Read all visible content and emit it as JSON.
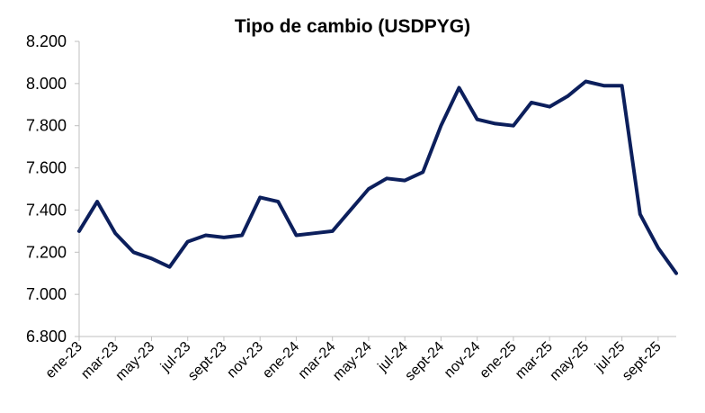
{
  "chart_data": {
    "type": "line",
    "title": "Tipo de cambio (USDPYG)",
    "xlabel": "",
    "ylabel": "",
    "ylim": [
      6800,
      8200
    ],
    "yticks": [
      6800,
      7000,
      7200,
      7400,
      7600,
      7800,
      8000,
      8200
    ],
    "ytick_labels": [
      "6.800",
      "7.000",
      "7.200",
      "7.400",
      "7.600",
      "7.800",
      "8.000",
      "8.200"
    ],
    "xtick_labels": [
      "ene-23",
      "mar-23",
      "may-23",
      "jul-23",
      "sept-23",
      "nov-23",
      "ene-24",
      "mar-24",
      "may-24",
      "jul-24",
      "sept-24",
      "nov-24",
      "ene-25",
      "mar-25",
      "may-25",
      "jul-25",
      "sept-25"
    ],
    "xlim": [
      "2023-01",
      "2025-10"
    ],
    "grid": false,
    "line_color": "#0c1f5c",
    "series": [
      {
        "x": [
          "2023-01",
          "2023-02",
          "2023-03",
          "2023-04",
          "2023-05",
          "2023-06",
          "2023-07",
          "2023-08",
          "2023-09",
          "2023-10",
          "2023-11",
          "2023-12",
          "2024-01",
          "2024-02",
          "2024-03",
          "2024-04",
          "2024-05",
          "2024-06",
          "2024-07",
          "2024-08",
          "2024-09",
          "2024-10",
          "2024-11",
          "2024-12",
          "2025-01",
          "2025-02",
          "2025-03",
          "2025-04",
          "2025-05",
          "2025-06",
          "2025-07",
          "2025-08",
          "2025-09",
          "2025-10"
        ],
        "values": [
          7300,
          7440,
          7290,
          7200,
          7170,
          7130,
          7250,
          7280,
          7270,
          7280,
          7460,
          7440,
          7280,
          7290,
          7300,
          7400,
          7500,
          7550,
          7540,
          7580,
          7800,
          7980,
          7830,
          7810,
          7800,
          7910,
          7890,
          7940,
          8010,
          7990,
          7990,
          7380,
          7220,
          7100
        ]
      }
    ]
  }
}
